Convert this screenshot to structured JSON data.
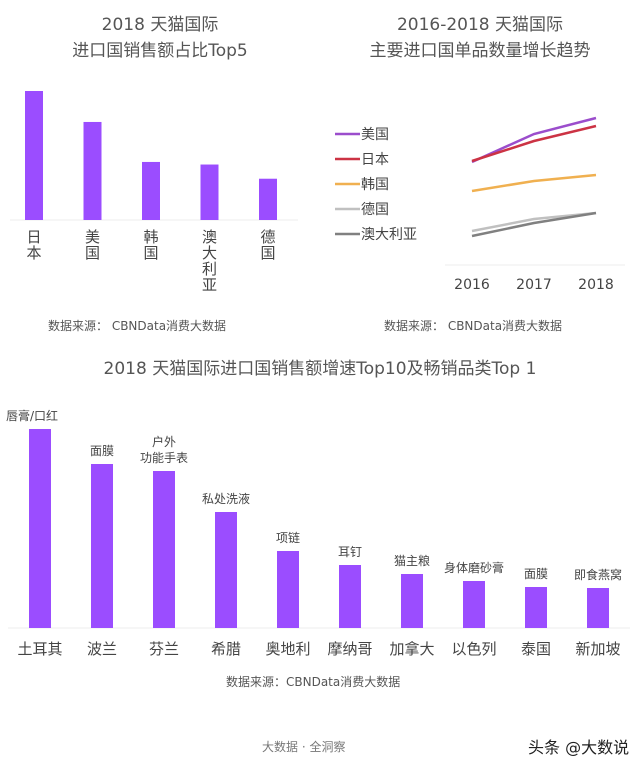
{
  "chart_data": [
    {
      "type": "bar",
      "title": "2018 天猫国际\n进口国销售额占比Top5",
      "title_lines": [
        "2018 天猫国际",
        "进口国销售额占比Top5"
      ],
      "categories": [
        "日本",
        "美国",
        "韩国",
        "澳大利亚",
        "德国"
      ],
      "values": [
        100,
        76,
        45,
        43,
        32
      ],
      "value_note": "relative bar heights, no axis printed",
      "color": "#9b4dff",
      "source": "数据来源：  CBNData消费大数据"
    },
    {
      "type": "line",
      "title_lines": [
        "2016-2018 天猫国际",
        "主要进口国单品数量增长趋势"
      ],
      "x": [
        "2016",
        "2017",
        "2018"
      ],
      "series": [
        {
          "name": "美国",
          "color": "#9b4dcc",
          "values": [
            103,
            131,
            147
          ]
        },
        {
          "name": "日本",
          "color": "#cc3344",
          "values": [
            104,
            124,
            139
          ]
        },
        {
          "name": "韩国",
          "color": "#f0b050",
          "values": [
            74,
            84,
            90
          ]
        },
        {
          "name": "德国",
          "color": "#c0c0c0",
          "values": [
            34,
            46,
            52
          ]
        },
        {
          "name": "澳大利亚",
          "color": "#808080",
          "values": [
            29,
            42,
            52
          ]
        }
      ],
      "legend": "left",
      "source": "数据来源：  CBNData消费大数据"
    },
    {
      "type": "bar",
      "title": "2018 天猫国际进口国销售额增速Top10及畅销品类Top 1",
      "categories": [
        "土耳其",
        "波兰",
        "芬兰",
        "希腊",
        "奥地利",
        "摩纳哥",
        "加拿大",
        "以色列",
        "泰国",
        "新加坡"
      ],
      "bar_labels": [
        [
          "唇膏/口红"
        ],
        [
          "面膜"
        ],
        [
          "户外",
          "功能手表"
        ],
        [
          "私处洗液"
        ],
        [
          "项链"
        ],
        [
          "耳钉"
        ],
        [
          "猫主粮"
        ],
        [
          "身体磨砂膏"
        ],
        [
          "面膜"
        ],
        [
          "即食燕窝"
        ]
      ],
      "values": [
        199,
        164,
        157,
        116,
        77,
        63,
        54,
        47,
        41,
        40
      ],
      "value_note": "relative bar heights, no axis printed",
      "color": "#9b4dff",
      "source": "数据来源：CBNData消费大数据"
    }
  ],
  "footer": {
    "text": "大数据  ·  全洞察",
    "watermark": "头条 @大数说"
  }
}
